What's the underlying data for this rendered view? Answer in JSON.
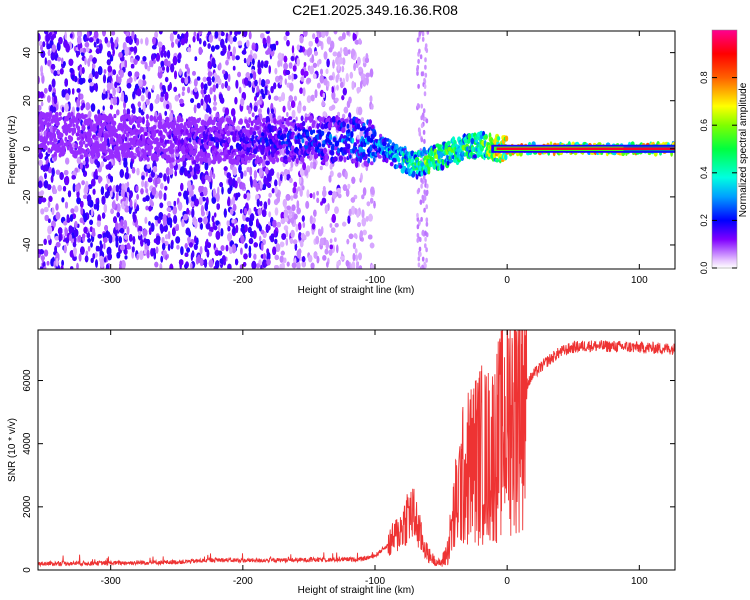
{
  "title": "C2E1.2025.349.16.36.R08",
  "chart_data": [
    {
      "type": "heatmap",
      "title": "C2E1.2025.349.16.36.R08",
      "xlabel": "Height of straight line (km)",
      "ylabel": "Frequency (Hz)",
      "xlim": [
        -355,
        127
      ],
      "ylim": [
        -50,
        49
      ],
      "xticks": [
        -300,
        -200,
        -100,
        0,
        100
      ],
      "yticks": [
        -40,
        -20,
        0,
        20,
        40
      ],
      "colorbar": {
        "label": "Normalized spectral amplitude",
        "ticks": [
          0.0,
          0.2,
          0.4,
          0.6,
          0.8
        ],
        "tick_labels": [
          "0.0",
          "0.2",
          "0.4",
          "0.6",
          "0.8"
        ],
        "range": [
          0,
          1
        ],
        "colormap": [
          "#ffffff",
          "#7a00ff",
          "#0000ff",
          "#00c0ff",
          "#00ff80",
          "#30ff00",
          "#ffff00",
          "#ff6000",
          "#ff0000",
          "#ff0080"
        ]
      },
      "ridge": {
        "x": [
          -355,
          -300,
          -250,
          -200,
          -150,
          -120,
          -100,
          -90,
          -80,
          -70,
          -60,
          -50,
          -40,
          -30,
          -20,
          -15,
          -10,
          0,
          50,
          127
        ],
        "frequency": [
          6,
          5,
          4,
          3,
          4,
          4,
          2,
          -1,
          -4,
          -7,
          -5,
          -3,
          -1,
          1,
          2,
          1,
          0,
          0,
          0,
          0
        ],
        "amplitude": [
          0.12,
          0.12,
          0.18,
          0.22,
          0.3,
          0.35,
          0.4,
          0.45,
          0.5,
          0.55,
          0.7,
          0.65,
          0.6,
          0.6,
          0.65,
          0.75,
          0.85,
          0.9,
          0.9,
          0.9
        ]
      },
      "noise_extent_km": -108
    },
    {
      "type": "line",
      "xlabel": "Height of straight line (km)",
      "ylabel": "SNR (10 * v/v)",
      "xlim": [
        -355,
        127
      ],
      "ylim": [
        0,
        7600
      ],
      "xticks": [
        -300,
        -200,
        -100,
        0,
        100
      ],
      "yticks": [
        0,
        2000,
        4000,
        6000
      ],
      "color": "#ee3333",
      "series": [
        {
          "name": "SNR",
          "x": [
            -355,
            -300,
            -250,
            -220,
            -200,
            -150,
            -110,
            -100,
            -90,
            -80,
            -75,
            -70,
            -65,
            -60,
            -55,
            -50,
            -45,
            -40,
            -35,
            -30,
            -25,
            -20,
            -15,
            -10,
            -5,
            0,
            5,
            10,
            20,
            30,
            40,
            50,
            60,
            80,
            100,
            127
          ],
          "y": [
            200,
            220,
            250,
            320,
            300,
            320,
            340,
            450,
            800,
            1300,
            1800,
            1700,
            1000,
            500,
            300,
            200,
            600,
            1800,
            2800,
            3200,
            3500,
            3700,
            3600,
            3800,
            4300,
            4800,
            5200,
            5600,
            6200,
            6600,
            6900,
            7050,
            7100,
            7080,
            7050,
            7000
          ]
        }
      ]
    }
  ]
}
